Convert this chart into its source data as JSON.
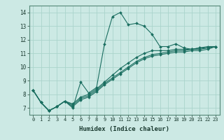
{
  "title": "",
  "xlabel": "Humidex (Indice chaleur)",
  "ylabel": "",
  "background_color": "#cce9e4",
  "grid_color": "#aad4cc",
  "line_color": "#1a6e60",
  "xlim": [
    -0.5,
    23.5
  ],
  "ylim": [
    6.5,
    14.5
  ],
  "xticks": [
    0,
    1,
    2,
    3,
    4,
    5,
    6,
    7,
    8,
    9,
    10,
    11,
    12,
    13,
    14,
    15,
    16,
    17,
    18,
    19,
    20,
    21,
    22,
    23
  ],
  "yticks": [
    7,
    8,
    9,
    10,
    11,
    12,
    13,
    14
  ],
  "series": [
    [
      8.3,
      7.4,
      6.8,
      7.1,
      7.5,
      7.0,
      8.9,
      8.1,
      8.5,
      11.7,
      13.7,
      14.0,
      13.1,
      13.2,
      13.0,
      12.4,
      11.5,
      11.5,
      11.7,
      11.4,
      11.3,
      11.4,
      11.5,
      11.5
    ],
    [
      8.3,
      7.4,
      6.8,
      7.1,
      7.5,
      7.3,
      7.8,
      8.0,
      8.4,
      8.9,
      9.4,
      9.9,
      10.3,
      10.7,
      11.0,
      11.2,
      11.2,
      11.2,
      11.3,
      11.3,
      11.3,
      11.4,
      11.4,
      11.5
    ],
    [
      8.3,
      7.4,
      6.8,
      7.1,
      7.5,
      7.2,
      7.7,
      7.9,
      8.3,
      8.8,
      9.2,
      9.6,
      10.0,
      10.4,
      10.7,
      10.9,
      11.0,
      11.1,
      11.2,
      11.2,
      11.3,
      11.3,
      11.4,
      11.5
    ],
    [
      8.3,
      7.4,
      6.8,
      7.1,
      7.5,
      7.1,
      7.6,
      7.8,
      8.2,
      8.7,
      9.1,
      9.5,
      9.9,
      10.3,
      10.6,
      10.8,
      10.9,
      11.0,
      11.1,
      11.1,
      11.2,
      11.2,
      11.3,
      11.5
    ]
  ],
  "xlabel_fontsize": 6.5,
  "tick_fontsize": 5.0,
  "marker_size": 2.0,
  "line_width": 0.8
}
